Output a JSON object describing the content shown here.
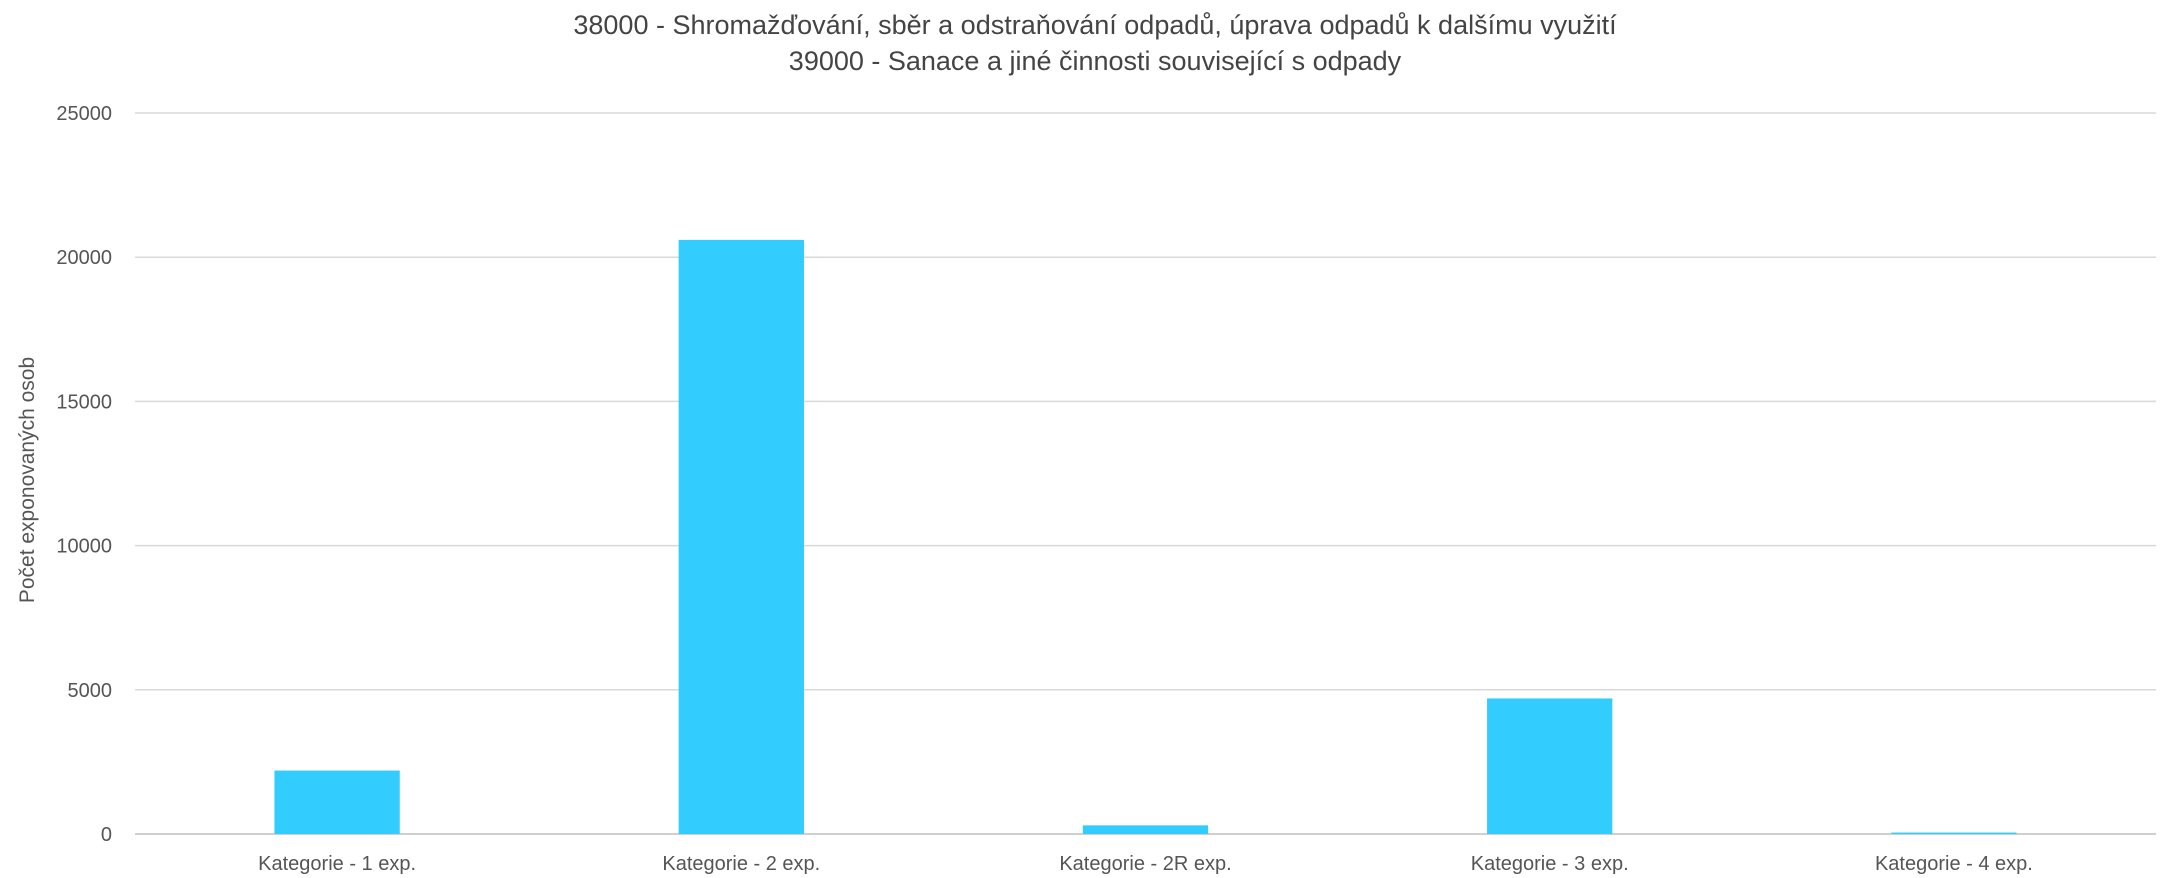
{
  "chart_data": {
    "type": "bar",
    "title_lines": [
      "38000 - Shromažďování, sběr a odstraňování odpadů, úprava odpadů k dalšímu využití",
      "39000 - Sanace a jiné činnosti související s odpady"
    ],
    "xlabel": "",
    "ylabel": "Počet exponovaných osob",
    "categories": [
      "Kategorie - 1 exp.",
      "Kategorie - 2 exp.",
      "Kategorie - 2R exp.",
      "Kategorie - 3 exp.",
      "Kategorie - 4 exp."
    ],
    "values": [
      2200,
      20600,
      300,
      4700,
      50
    ],
    "ylim": [
      0,
      25000
    ],
    "yticks": [
      0,
      5000,
      10000,
      15000,
      20000,
      25000
    ],
    "grid": true,
    "legend": "none",
    "colors": {
      "bar": "#33CCFF",
      "gridline": "#D9D9D9",
      "axis": "#BFBFBF"
    }
  }
}
